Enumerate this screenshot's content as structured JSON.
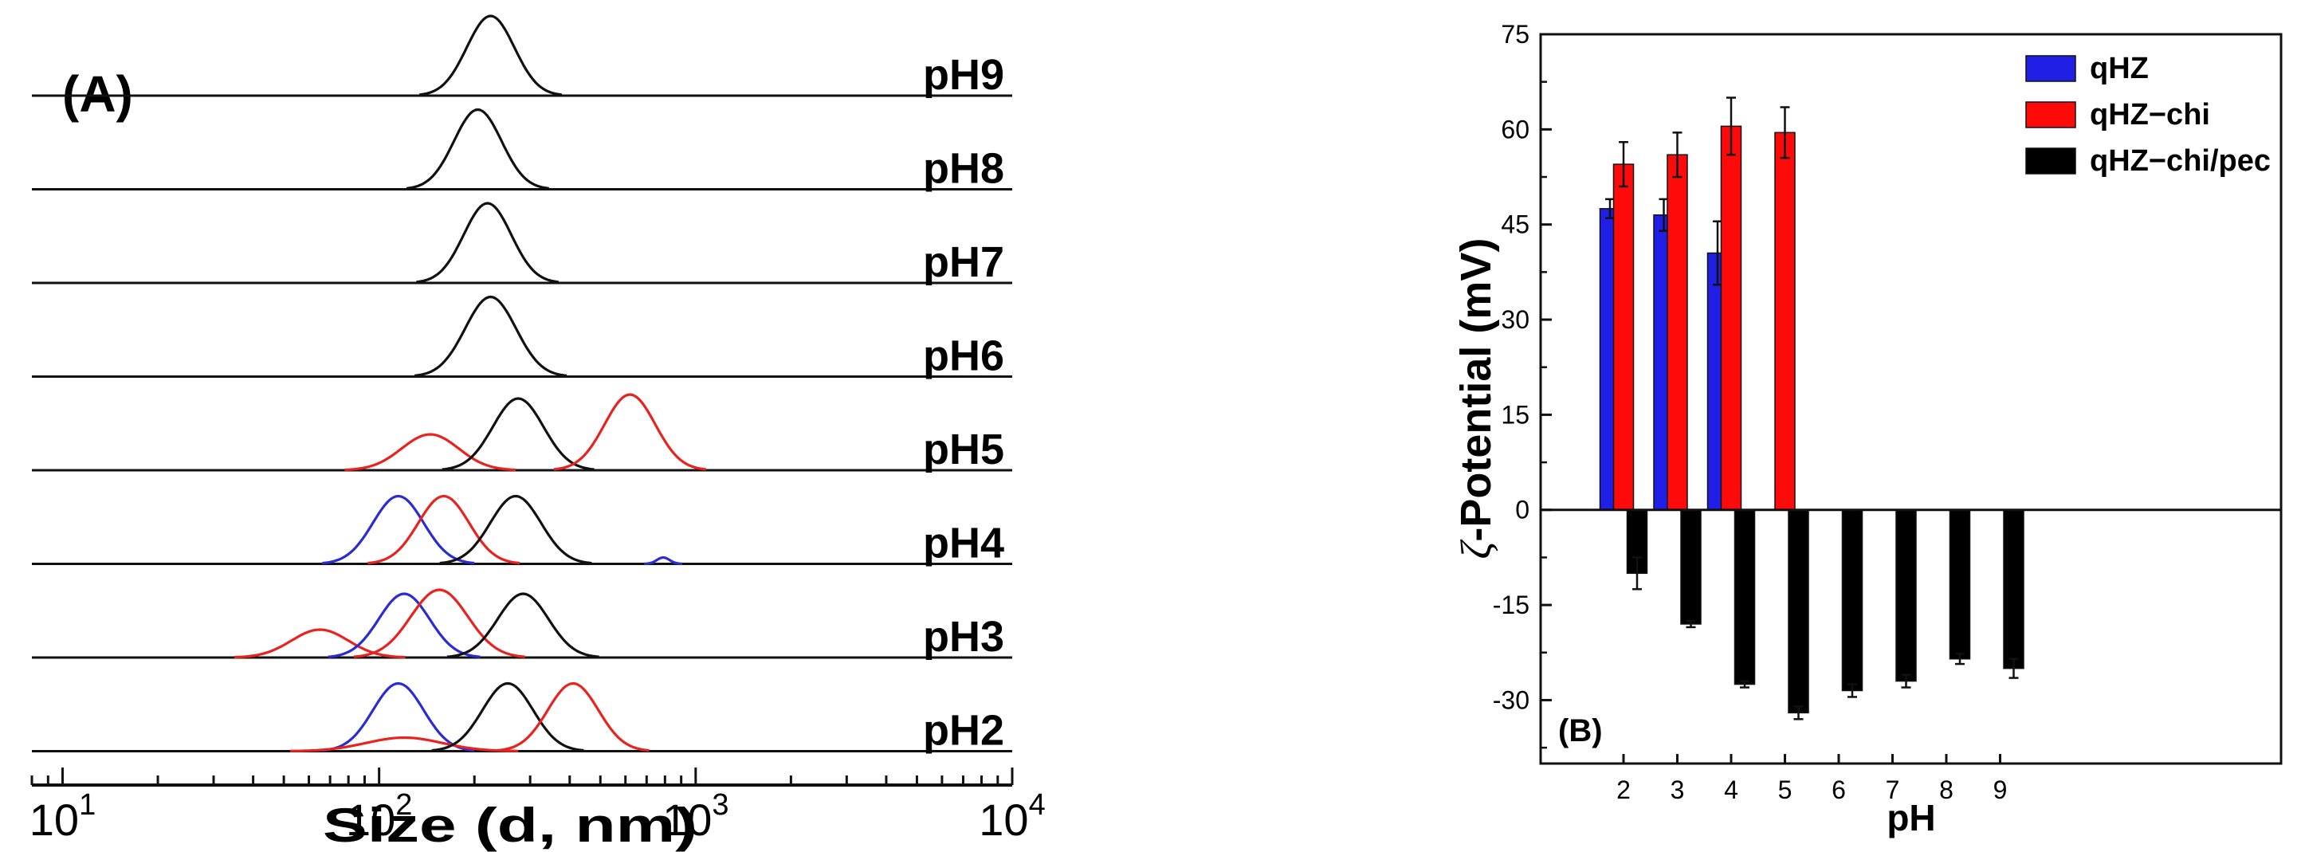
{
  "chart_data": [
    {
      "type": "line",
      "panel_label": "(A)",
      "xlabel": "Size (d, nm)",
      "xscale": "log",
      "xlim": [
        8,
        10000
      ],
      "xticks": [
        {
          "value": 10,
          "base": "10",
          "exp": "1"
        },
        {
          "value": 100,
          "base": "10",
          "exp": "2"
        },
        {
          "value": 1000,
          "base": "10",
          "exp": "3"
        },
        {
          "value": 10000,
          "base": "10",
          "exp": "4"
        }
      ],
      "legend_colors": {
        "qHZ": "#2b2bd6",
        "qHZ-chi": "#e8231f",
        "qHZ-chi/pec": "#111111"
      },
      "traces": [
        {
          "label": "pH9",
          "peaks": [
            {
              "series": "qHZ-chi/pec",
              "center": 225,
              "width": 0.075,
              "height": 1.0
            }
          ]
        },
        {
          "label": "pH8",
          "peaks": [
            {
              "series": "qHZ-chi/pec",
              "center": 205,
              "width": 0.075,
              "height": 1.0
            }
          ]
        },
        {
          "label": "pH7",
          "peaks": [
            {
              "series": "qHZ-chi/pec",
              "center": 220,
              "width": 0.075,
              "height": 1.0
            }
          ]
        },
        {
          "label": "pH6",
          "peaks": [
            {
              "series": "qHZ-chi/pec",
              "center": 225,
              "width": 0.08,
              "height": 1.0
            }
          ]
        },
        {
          "label": "pH5",
          "peaks": [
            {
              "series": "qHZ-chi",
              "center": 145,
              "width": 0.09,
              "height": 0.45
            },
            {
              "series": "qHZ-chi/pec",
              "center": 275,
              "width": 0.08,
              "height": 0.9
            },
            {
              "series": "qHZ-chi",
              "center": 620,
              "width": 0.08,
              "height": 0.95
            }
          ]
        },
        {
          "label": "pH4",
          "peaks": [
            {
              "series": "qHZ",
              "center": 115,
              "width": 0.08,
              "height": 0.85
            },
            {
              "series": "qHZ-chi",
              "center": 160,
              "width": 0.08,
              "height": 0.85
            },
            {
              "series": "qHZ-chi/pec",
              "center": 270,
              "width": 0.08,
              "height": 0.85
            },
            {
              "series": "qHZ",
              "center": 790,
              "width": 0.02,
              "height": 0.08
            }
          ]
        },
        {
          "label": "pH3",
          "peaks": [
            {
              "series": "qHZ-chi",
              "center": 65,
              "width": 0.09,
              "height": 0.35
            },
            {
              "series": "qHZ",
              "center": 120,
              "width": 0.08,
              "height": 0.8
            },
            {
              "series": "qHZ-chi",
              "center": 155,
              "width": 0.09,
              "height": 0.85
            },
            {
              "series": "qHZ-chi/pec",
              "center": 285,
              "width": 0.08,
              "height": 0.8
            }
          ]
        },
        {
          "label": "pH2",
          "peaks": [
            {
              "series": "qHZ",
              "center": 115,
              "width": 0.08,
              "height": 0.85
            },
            {
              "series": "qHZ-chi",
              "center": 120,
              "width": 0.12,
              "height": 0.17
            },
            {
              "series": "qHZ-chi/pec",
              "center": 255,
              "width": 0.08,
              "height": 0.85
            },
            {
              "series": "qHZ-chi",
              "center": 410,
              "width": 0.08,
              "height": 0.85
            }
          ]
        }
      ]
    },
    {
      "type": "bar",
      "panel_label": "(B)",
      "xlabel": "pH",
      "ylabel_symbol": "ζ",
      "ylabel_text": "-Potential (mV)",
      "ylim": [
        -40,
        75
      ],
      "yticks": [
        75,
        60,
        45,
        30,
        15,
        0,
        -15,
        -30
      ],
      "categories": [
        "2",
        "3",
        "4",
        "5",
        "6",
        "7",
        "8",
        "9"
      ],
      "series": [
        {
          "name": "qHZ",
          "color": "#1f1fe6",
          "values": [
            47.5,
            46.5,
            40.5,
            null,
            null,
            null,
            null,
            null
          ],
          "errors": [
            1.5,
            2.5,
            5.0,
            null,
            null,
            null,
            null,
            null
          ]
        },
        {
          "name": "qHZ−chi",
          "color": "#ff0a0a",
          "values": [
            54.5,
            56.0,
            60.5,
            59.5,
            null,
            null,
            null,
            null
          ],
          "errors": [
            3.5,
            3.5,
            4.5,
            4.0,
            null,
            null,
            null,
            null
          ]
        },
        {
          "name": "qHZ−chi/pec",
          "color": "#000000",
          "values": [
            -10.0,
            -18.0,
            -27.5,
            -32.0,
            -28.5,
            -27.0,
            -23.5,
            -25.0
          ],
          "errors": [
            2.5,
            0.5,
            0.5,
            1.0,
            1.0,
            1.0,
            0.8,
            1.5
          ]
        }
      ],
      "legend_position": "top-right"
    }
  ]
}
